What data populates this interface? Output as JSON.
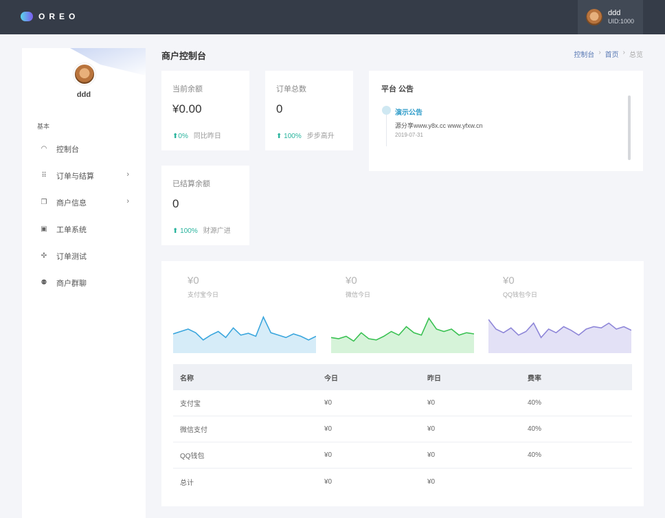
{
  "topbar": {
    "logo_text": "OREO",
    "user_name": "ddd",
    "user_uid": "UID:1000"
  },
  "sidebar": {
    "user_name": "ddd",
    "section_label": "基本",
    "items": [
      {
        "label": "控制台",
        "icon": "dashboard-icon"
      },
      {
        "label": "订单与结算",
        "icon": "grid-icon",
        "has_arrow": true
      },
      {
        "label": "商户信息",
        "icon": "document-icon",
        "has_arrow": true
      },
      {
        "label": "工单系统",
        "icon": "ticket-icon"
      },
      {
        "label": "订单测试",
        "icon": "test-icon"
      },
      {
        "label": "商户群聊",
        "icon": "group-icon"
      }
    ]
  },
  "header": {
    "title": "商户控制台",
    "breadcrumb": [
      "控制台",
      "首页",
      "总览"
    ],
    "breadcrumb_sep": "›"
  },
  "stats": {
    "balance": {
      "label": "当前余额",
      "value": "¥0.00",
      "pct": "0%",
      "note": "同比昨日"
    },
    "orders": {
      "label": "订单总数",
      "value": "0",
      "pct": "100%",
      "note": "步步高升"
    },
    "settled": {
      "label": "已结算余额",
      "value": "0",
      "pct": "100%",
      "note": "财源广进"
    }
  },
  "notice": {
    "title": "平台 公告",
    "items": [
      {
        "head": "演示公告",
        "body": "源分享www.y8x.cc www.yfxw.cn",
        "date": "2019-07-31"
      }
    ]
  },
  "channels": [
    {
      "amount": "¥0",
      "label": "支付宝今日",
      "color": "#3aa6dd",
      "fill": "#d6ecf8",
      "values": [
        32,
        36,
        40,
        34,
        22,
        30,
        36,
        26,
        42,
        30,
        33,
        28,
        60,
        34,
        30,
        26,
        32,
        28,
        22,
        28
      ]
    },
    {
      "amount": "¥0",
      "label": "微信今日",
      "color": "#39c152",
      "fill": "#d6f3d9",
      "values": [
        26,
        24,
        28,
        20,
        34,
        24,
        22,
        28,
        36,
        30,
        44,
        34,
        30,
        58,
        40,
        36,
        40,
        30,
        34,
        32
      ]
    },
    {
      "amount": "¥0",
      "label": "QQ钱包今日",
      "color": "#8e86d8",
      "fill": "#e3e1f6",
      "values": [
        56,
        40,
        34,
        42,
        30,
        36,
        50,
        26,
        40,
        34,
        44,
        38,
        30,
        40,
        44,
        42,
        50,
        40,
        44,
        38
      ]
    }
  ],
  "table": {
    "headers": [
      "名称",
      "今日",
      "昨日",
      "费率"
    ],
    "rows": [
      [
        "支付宝",
        "¥0",
        "¥0",
        "40%"
      ],
      [
        "微信支付",
        "¥0",
        "¥0",
        "40%"
      ],
      [
        "QQ钱包",
        "¥0",
        "¥0",
        "40%"
      ],
      [
        "总计",
        "¥0",
        "¥0",
        ""
      ]
    ]
  },
  "colors": {
    "topbar": "#353c48",
    "accent_green": "#27b39c",
    "accent_blue": "#2f9cc9"
  }
}
